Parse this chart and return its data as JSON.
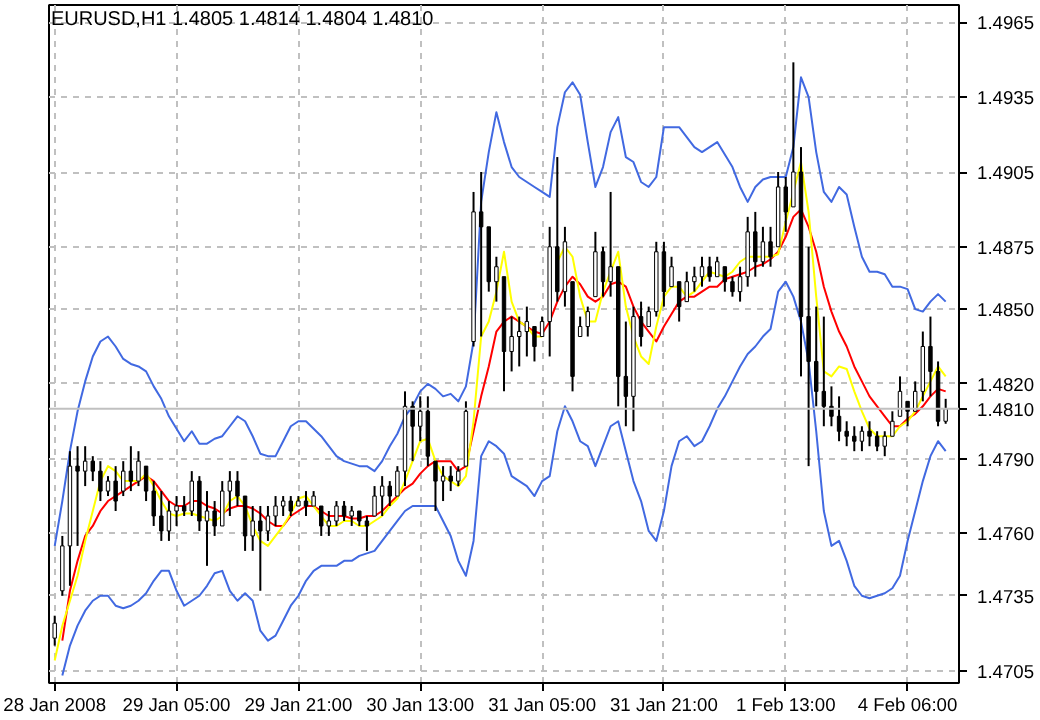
{
  "chart_data": {
    "type": "candlestick",
    "title": "EURUSD,H1  1.4805 1.4814 1.4804 1.4810",
    "categories": [
      "28 Jan 2008",
      null,
      null,
      null,
      null,
      null,
      null,
      null,
      null,
      null,
      null,
      null,
      null,
      null,
      null,
      null,
      "29 Jan 05:00",
      null,
      null,
      null,
      null,
      null,
      null,
      null,
      null,
      null,
      null,
      null,
      null,
      null,
      null,
      null,
      "29 Jan 21:00",
      null,
      null,
      null,
      null,
      null,
      null,
      null,
      null,
      null,
      null,
      null,
      null,
      null,
      null,
      null,
      "30 Jan 13:00",
      null,
      null,
      null,
      null,
      null,
      null,
      null,
      null,
      null,
      null,
      null,
      null,
      null,
      null,
      null,
      "31 Jan 05:00",
      null,
      null,
      null,
      null,
      null,
      null,
      null,
      null,
      null,
      null,
      null,
      null,
      null,
      null,
      null,
      "31 Jan 21:00",
      null,
      null,
      null,
      null,
      null,
      null,
      null,
      null,
      null,
      null,
      null,
      null,
      null,
      null,
      null,
      "1 Feb 13:00",
      null,
      null,
      null,
      null,
      null,
      null,
      null,
      null,
      null,
      null,
      null,
      null,
      null,
      null,
      null,
      "4 Feb 06:00",
      null,
      null,
      null,
      null,
      null
    ],
    "ohlc": [
      [
        1.4718,
        1.4727,
        1.4715,
        1.4724
      ],
      [
        1.4737,
        1.4759,
        1.4735,
        1.4755
      ],
      [
        1.4755,
        1.4793,
        1.4739,
        1.4787
      ],
      [
        1.4787,
        1.4795,
        1.4755,
        1.4785
      ],
      [
        1.4785,
        1.4795,
        1.4779,
        1.4789
      ],
      [
        1.4789,
        1.4791,
        1.4781,
        1.4785
      ],
      [
        1.4785,
        1.4789,
        1.4773,
        1.4777
      ],
      [
        1.4777,
        1.4783,
        1.4775,
        1.4781
      ],
      [
        1.4781,
        1.4787,
        1.4769,
        1.4773
      ],
      [
        1.4777,
        1.4789,
        1.4775,
        1.4785
      ],
      [
        1.4785,
        1.4795,
        1.4777,
        1.4781
      ],
      [
        1.4781,
        1.4793,
        1.4779,
        1.4789
      ],
      [
        1.4787,
        1.4787,
        1.4773,
        1.4777
      ],
      [
        1.4777,
        1.4781,
        1.4763,
        1.4767
      ],
      [
        1.4767,
        1.4777,
        1.4757,
        1.4761
      ],
      [
        1.4761,
        1.4773,
        1.4757,
        1.4769
      ],
      [
        1.4769,
        1.4775,
        1.4763,
        1.4771
      ],
      [
        1.4771,
        1.4775,
        1.4767,
        1.4769
      ],
      [
        1.4769,
        1.4785,
        1.4767,
        1.4781
      ],
      [
        1.4781,
        1.4783,
        1.4761,
        1.4765
      ],
      [
        1.4765,
        1.4777,
        1.4747,
        1.4769
      ],
      [
        1.4769,
        1.4773,
        1.4759,
        1.4763
      ],
      [
        1.4763,
        1.4781,
        1.4763,
        1.4777
      ],
      [
        1.4777,
        1.4785,
        1.4767,
        1.4781
      ],
      [
        1.4781,
        1.4785,
        1.4771,
        1.4775
      ],
      [
        1.4775,
        1.4775,
        1.4753,
        1.4759
      ],
      [
        1.4759,
        1.4771,
        1.4753,
        1.4765
      ],
      [
        1.4765,
        1.4771,
        1.4737,
        1.4761
      ],
      [
        1.4761,
        1.4771,
        1.4757,
        1.4767
      ],
      [
        1.4767,
        1.4775,
        1.4763,
        1.4771
      ],
      [
        1.4771,
        1.4775,
        1.4767,
        1.4773
      ],
      [
        1.4773,
        1.4775,
        1.4767,
        1.4769
      ],
      [
        1.4771,
        1.4775,
        1.4771,
        1.4773
      ],
      [
        1.4773,
        1.4777,
        1.4767,
        1.4771
      ],
      [
        1.4771,
        1.4777,
        1.4771,
        1.4775
      ],
      [
        1.4771,
        1.4771,
        1.4759,
        1.4763
      ],
      [
        1.4763,
        1.4769,
        1.4759,
        1.4765
      ],
      [
        1.4765,
        1.4773,
        1.4763,
        1.4771
      ],
      [
        1.4771,
        1.4773,
        1.4765,
        1.4767
      ],
      [
        1.4767,
        1.4771,
        1.4763,
        1.4769
      ],
      [
        1.4769,
        1.4769,
        1.4763,
        1.4765
      ],
      [
        1.4765,
        1.4767,
        1.4753,
        1.4763
      ],
      [
        1.4767,
        1.4779,
        1.4767,
        1.4775
      ],
      [
        1.4775,
        1.4783,
        1.4767,
        1.4779
      ],
      [
        1.4779,
        1.4781,
        1.4771,
        1.4775
      ],
      [
        1.4775,
        1.4787,
        1.4775,
        1.4785
      ],
      [
        1.4785,
        1.4817,
        1.4779,
        1.4811
      ],
      [
        1.4811,
        1.4813,
        1.4789,
        1.4803
      ],
      [
        1.4803,
        1.4815,
        1.4797,
        1.4809
      ],
      [
        1.4809,
        1.4815,
        1.4787,
        1.4791
      ],
      [
        1.4789,
        1.4789,
        1.4769,
        1.4781
      ],
      [
        1.4781,
        1.4787,
        1.4773,
        1.4783
      ],
      [
        1.4783,
        1.4787,
        1.4777,
        1.4781
      ],
      [
        1.4781,
        1.4787,
        1.4779,
        1.4785
      ],
      [
        1.4787,
        1.4813,
        1.4787,
        1.4809
      ],
      [
        1.4837,
        1.4897,
        1.4835,
        1.4889
      ],
      [
        1.4889,
        1.4905,
        1.4839,
        1.4883
      ],
      [
        1.4883,
        1.4883,
        1.4857,
        1.4861
      ],
      [
        1.4861,
        1.4871,
        1.4853,
        1.4867
      ],
      [
        1.4863,
        1.4863,
        1.4817,
        1.4833
      ],
      [
        1.4833,
        1.4847,
        1.4825,
        1.4839
      ],
      [
        1.4839,
        1.4847,
        1.4827,
        1.4841
      ],
      [
        1.4841,
        1.4851,
        1.4831,
        1.4845
      ],
      [
        1.4843,
        1.4843,
        1.4829,
        1.4835
      ],
      [
        1.4839,
        1.4847,
        1.4839,
        1.4845
      ],
      [
        1.4845,
        1.4883,
        1.4831,
        1.4875
      ],
      [
        1.4875,
        1.4911,
        1.4853,
        1.4857
      ],
      [
        1.4857,
        1.4883,
        1.4851,
        1.4877
      ],
      [
        1.4861,
        1.4861,
        1.4817,
        1.4823
      ],
      [
        1.4839,
        1.4847,
        1.4839,
        1.4843
      ],
      [
        1.4843,
        1.4851,
        1.4839,
        1.4849
      ],
      [
        1.4855,
        1.4881,
        1.4855,
        1.4873
      ],
      [
        1.4873,
        1.4875,
        1.4855,
        1.4861
      ],
      [
        1.4861,
        1.4897,
        1.4855,
        1.4867
      ],
      [
        1.4867,
        1.4867,
        1.4811,
        1.4823
      ],
      [
        1.4823,
        1.4845,
        1.4803,
        1.4815
      ],
      [
        1.4815,
        1.4851,
        1.4801,
        1.4847
      ],
      [
        1.4847,
        1.4853,
        1.4835,
        1.4839
      ],
      [
        1.4843,
        1.4851,
        1.4843,
        1.4849
      ],
      [
        1.4849,
        1.4877,
        1.4847,
        1.4873
      ],
      [
        1.4873,
        1.4877,
        1.4851,
        1.4857
      ],
      [
        1.4859,
        1.4871,
        1.4859,
        1.4867
      ],
      [
        1.4861,
        1.4861,
        1.4845,
        1.4851
      ],
      [
        1.4853,
        1.4865,
        1.4853,
        1.4861
      ],
      [
        1.4861,
        1.4867,
        1.4857,
        1.4863
      ],
      [
        1.4863,
        1.4871,
        1.4859,
        1.4867
      ],
      [
        1.4867,
        1.4871,
        1.4861,
        1.4863
      ],
      [
        1.4863,
        1.4871,
        1.4863,
        1.4869
      ],
      [
        1.4867,
        1.4867,
        1.4857,
        1.4861
      ],
      [
        1.4861,
        1.4863,
        1.4855,
        1.4857
      ],
      [
        1.4857,
        1.4867,
        1.4853,
        1.4863
      ],
      [
        1.4863,
        1.4887,
        1.4859,
        1.4881
      ],
      [
        1.4881,
        1.4889,
        1.4863,
        1.4869
      ],
      [
        1.4869,
        1.4883,
        1.4867,
        1.4877
      ],
      [
        1.4877,
        1.4883,
        1.4867,
        1.4871
      ],
      [
        1.4875,
        1.4905,
        1.4875,
        1.4899
      ],
      [
        1.4899,
        1.4903,
        1.4881,
        1.4889
      ],
      [
        1.4891,
        1.4949,
        1.4891,
        1.4905
      ],
      [
        1.4905,
        1.4915,
        1.4823,
        1.4847
      ],
      [
        1.4847,
        1.4875,
        1.4787,
        1.4829
      ],
      [
        1.4829,
        1.4851,
        1.4811,
        1.4817
      ],
      [
        1.4817,
        1.4847,
        1.4803,
        1.4811
      ],
      [
        1.4811,
        1.4819,
        1.4803,
        1.4807
      ],
      [
        1.4807,
        1.4815,
        1.4797,
        1.4801
      ],
      [
        1.4801,
        1.4805,
        1.4795,
        1.4799
      ],
      [
        1.4799,
        1.4803,
        1.4793,
        1.4797
      ],
      [
        1.4797,
        1.4803,
        1.4793,
        1.4801
      ],
      [
        1.4801,
        1.4805,
        1.4795,
        1.4799
      ],
      [
        1.4799,
        1.4801,
        1.4793,
        1.4795
      ],
      [
        1.4795,
        1.4801,
        1.4791,
        1.4799
      ],
      [
        1.4799,
        1.4809,
        1.4799,
        1.4805
      ],
      [
        1.4807,
        1.4823,
        1.4807,
        1.4817
      ],
      [
        1.4813,
        1.4813,
        1.4803,
        1.4809
      ],
      [
        1.4809,
        1.4821,
        1.4809,
        1.4817
      ],
      [
        1.4817,
        1.4841,
        1.4813,
        1.4835
      ],
      [
        1.4835,
        1.4847,
        1.4815,
        1.4825
      ],
      [
        1.4825,
        1.4829,
        1.4803,
        1.4805
      ],
      [
        1.4805,
        1.4814,
        1.4804,
        1.481
      ]
    ],
    "series": [
      {
        "type": "line",
        "color": "#4169e1",
        "values": [
          1.4755,
          1.4773,
          1.4793,
          1.4809,
          1.4821,
          1.4831,
          1.4837,
          1.4839,
          1.4835,
          1.483,
          1.4828,
          1.4827,
          1.4825,
          1.4819,
          1.4814,
          1.4807,
          1.4802,
          1.4797,
          1.4801,
          1.4796,
          1.4796,
          1.4798,
          1.4799,
          1.4803,
          1.4807,
          1.4805,
          1.4799,
          1.4792,
          1.4791,
          1.4791,
          1.4797,
          1.4803,
          1.4805,
          1.4805,
          1.4802,
          1.4799,
          1.4795,
          1.4791,
          1.4789,
          1.4788,
          1.4787,
          1.4787,
          1.4785,
          1.4789,
          1.4795,
          1.48,
          1.4807,
          1.4811,
          1.4817,
          1.482,
          1.4818,
          1.4815,
          1.4816,
          1.4813,
          1.4819,
          1.4837,
          1.4893,
          1.4913,
          1.4929,
          1.4917,
          1.4907,
          1.4903,
          1.4901,
          1.4899,
          1.4897,
          1.4895,
          1.4923,
          1.4937,
          1.4941,
          1.4936,
          1.4917,
          1.4899,
          1.4907,
          1.4921,
          1.4927,
          1.4911,
          1.4909,
          1.4901,
          1.4899,
          1.4903,
          1.4923,
          1.4923,
          1.4923,
          1.4919,
          1.4915,
          1.4913,
          1.4915,
          1.4917,
          1.4912,
          1.4907,
          1.4899,
          1.4893,
          1.4899,
          1.4902,
          1.4903,
          1.4903,
          1.4903,
          1.4915,
          1.4943,
          1.4935,
          1.4913,
          1.4897,
          1.4893,
          1.4899,
          1.4896,
          1.4883,
          1.4871,
          1.4865,
          1.4865,
          1.4864,
          1.4859,
          1.4859,
          1.4858,
          1.485,
          1.4849,
          1.4853,
          1.4856,
          1.4853
        ]
      },
      {
        "type": "line",
        "color": "#4169e1",
        "values": [
          null,
          1.4703,
          1.4715,
          1.4723,
          1.4729,
          1.4733,
          1.4735,
          1.4735,
          1.4731,
          1.473,
          1.4731,
          1.4733,
          1.4736,
          1.4741,
          1.4745,
          1.4745,
          1.4737,
          1.4731,
          1.4733,
          1.4735,
          1.4739,
          1.4744,
          1.4745,
          1.4737,
          1.4733,
          1.4736,
          1.4733,
          1.4721,
          1.4717,
          1.4719,
          1.4725,
          1.4731,
          1.4735,
          1.4741,
          1.4745,
          1.4747,
          1.4747,
          1.4747,
          1.4749,
          1.4749,
          1.4751,
          1.4752,
          1.4753,
          1.4757,
          1.4761,
          1.4765,
          1.4769,
          1.4771,
          1.4771,
          1.4771,
          1.4771,
          1.4765,
          1.4759,
          1.4749,
          1.4743,
          1.4757,
          1.4791,
          1.4797,
          1.4795,
          1.4792,
          1.4783,
          1.4781,
          1.4779,
          1.4775,
          1.4781,
          1.4783,
          1.4801,
          1.4811,
          1.4805,
          1.4797,
          1.4795,
          1.4787,
          1.4795,
          1.4803,
          1.4805,
          1.4793,
          1.4781,
          1.4773,
          1.4761,
          1.4757,
          1.4769,
          1.4787,
          1.4797,
          1.4799,
          1.4795,
          1.4797,
          1.4803,
          1.481,
          1.4815,
          1.4821,
          1.4827,
          1.4832,
          1.4835,
          1.4839,
          1.4842,
          1.4857,
          1.4861,
          1.4855,
          1.4845,
          1.4829,
          1.4801,
          1.4769,
          1.4755,
          1.4757,
          1.4749,
          1.4739,
          1.4735,
          1.4734,
          1.4735,
          1.4736,
          1.4738,
          1.4743,
          1.4757,
          1.4769,
          1.4781,
          1.4791,
          1.4797,
          1.4793
        ]
      },
      {
        "type": "line",
        "color": "#ff0000",
        "values": [
          null,
          1.4717,
          1.4737,
          1.4749,
          1.4759,
          1.4763,
          1.4769,
          1.4773,
          1.4775,
          1.4777,
          1.4779,
          1.4781,
          1.4783,
          1.4781,
          1.4777,
          1.4773,
          1.4771,
          1.4771,
          1.4773,
          1.4773,
          1.4771,
          1.477,
          1.4768,
          1.477,
          1.4771,
          1.4771,
          1.477,
          1.4768,
          1.4765,
          1.4763,
          1.4763,
          1.4767,
          1.4769,
          1.4771,
          1.4771,
          1.4769,
          1.4767,
          1.4767,
          1.4767,
          1.4766,
          1.4766,
          1.4767,
          1.4767,
          1.4769,
          1.4772,
          1.4775,
          1.4778,
          1.478,
          1.4784,
          1.4787,
          1.4789,
          1.4789,
          1.4789,
          1.4785,
          1.4787,
          1.4801,
          1.4815,
          1.4827,
          1.4841,
          1.4845,
          1.4847,
          1.4845,
          1.4843,
          1.4841,
          1.484,
          1.4845,
          1.4853,
          1.4859,
          1.4863,
          1.486,
          1.4855,
          1.4853,
          1.4855,
          1.486,
          1.4861,
          1.4859,
          1.4851,
          1.4845,
          1.4841,
          1.4837,
          1.4843,
          1.4848,
          1.4853,
          1.4855,
          1.4855,
          1.4857,
          1.4859,
          1.4859,
          1.4862,
          1.4863,
          1.4864,
          1.4865,
          1.4867,
          1.4868,
          1.487,
          1.4873,
          1.4879,
          1.4887,
          1.489,
          1.4883,
          1.4873,
          1.4859,
          1.4849,
          1.4841,
          1.4835,
          1.4827,
          1.4821,
          1.4815,
          1.4811,
          1.4807,
          1.4803,
          1.4803,
          1.4806,
          1.4808,
          1.4811,
          1.4815,
          1.4818,
          1.4817
        ]
      },
      {
        "type": "line",
        "color": "#ffff00",
        "values": [
          1.4709,
          1.4723,
          1.4733,
          1.4743,
          1.4757,
          1.4769,
          1.4781,
          1.4787,
          1.4785,
          1.4781,
          1.4781,
          1.4781,
          1.4784,
          1.4779,
          1.4773,
          1.4768,
          1.4767,
          1.4768,
          1.4768,
          1.4767,
          1.4766,
          1.4765,
          1.4767,
          1.4773,
          1.4775,
          1.4771,
          1.4763,
          1.4757,
          1.4755,
          1.4759,
          1.4763,
          1.4768,
          1.4774,
          1.4775,
          1.4771,
          1.4767,
          1.4763,
          1.4763,
          1.4765,
          1.4765,
          1.4763,
          1.4763,
          1.4765,
          1.4767,
          1.4771,
          1.4774,
          1.4781,
          1.4789,
          1.4797,
          1.4798,
          1.4789,
          1.4783,
          1.4781,
          1.4779,
          1.4783,
          1.4805,
          1.4839,
          1.4845,
          1.4857,
          1.4873,
          1.4853,
          1.4845,
          1.4843,
          1.4839,
          1.4839,
          null,
          1.4869,
          1.4875,
          1.4871,
          1.4855,
          1.4845,
          1.4845,
          1.4857,
          1.4865,
          1.4873,
          1.4851,
          1.4839,
          1.4831,
          1.4828,
          1.4843,
          1.4855,
          1.4859,
          1.4859,
          1.4855,
          1.4857,
          1.4861,
          1.4865,
          1.4864,
          1.4863,
          1.4865,
          1.4869,
          1.4871,
          1.4871,
          1.4871,
          1.4871,
          1.4872,
          1.4885,
          1.4897,
          1.4909,
          1.4889,
          1.4855,
          1.4825,
          1.4823,
          1.4827,
          1.4826,
          1.4817,
          1.4809,
          1.4802,
          1.4799,
          1.4799,
          1.4799,
          1.4803,
          1.4805,
          1.4809,
          1.4815,
          1.4821,
          1.4827,
          1.4823
        ]
      }
    ],
    "ylim": [
      1.47,
      1.4972
    ],
    "yticks": [
      1.4965,
      1.4935,
      1.4905,
      1.4875,
      {
        "value": 1.485,
        "label": "1.4850"
      },
      {
        "value": 1.482,
        "label": "1.4820"
      },
      {
        "value": 1.479,
        "label": "1.4790"
      },
      {
        "value": 1.476,
        "label": "1.4760"
      },
      1.4735,
      1.4705
    ],
    "grid": true,
    "ref_lines": [
      {
        "axis": "y",
        "value": 1.481,
        "label": "1.4810",
        "color": "#c0c0c0"
      }
    ]
  }
}
